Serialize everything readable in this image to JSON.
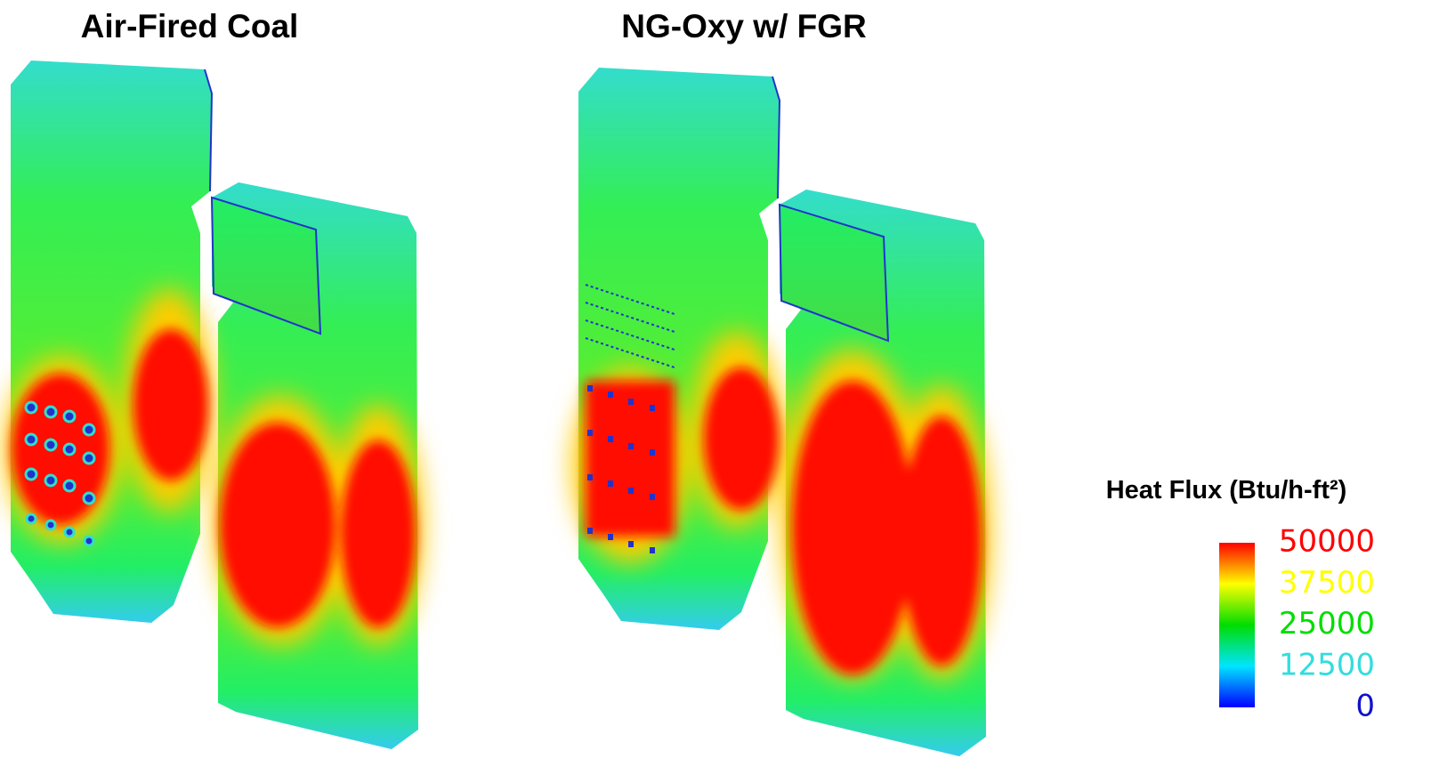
{
  "panels": [
    {
      "title": "Air-Fired Coal"
    },
    {
      "title": "NG-Oxy w/ FGR"
    }
  ],
  "legend": {
    "title": "Heat Flux (Btu/h-ft²)",
    "range": [
      0,
      50000
    ],
    "ticks": [
      50000,
      37500,
      25000,
      12500,
      0
    ]
  }
}
